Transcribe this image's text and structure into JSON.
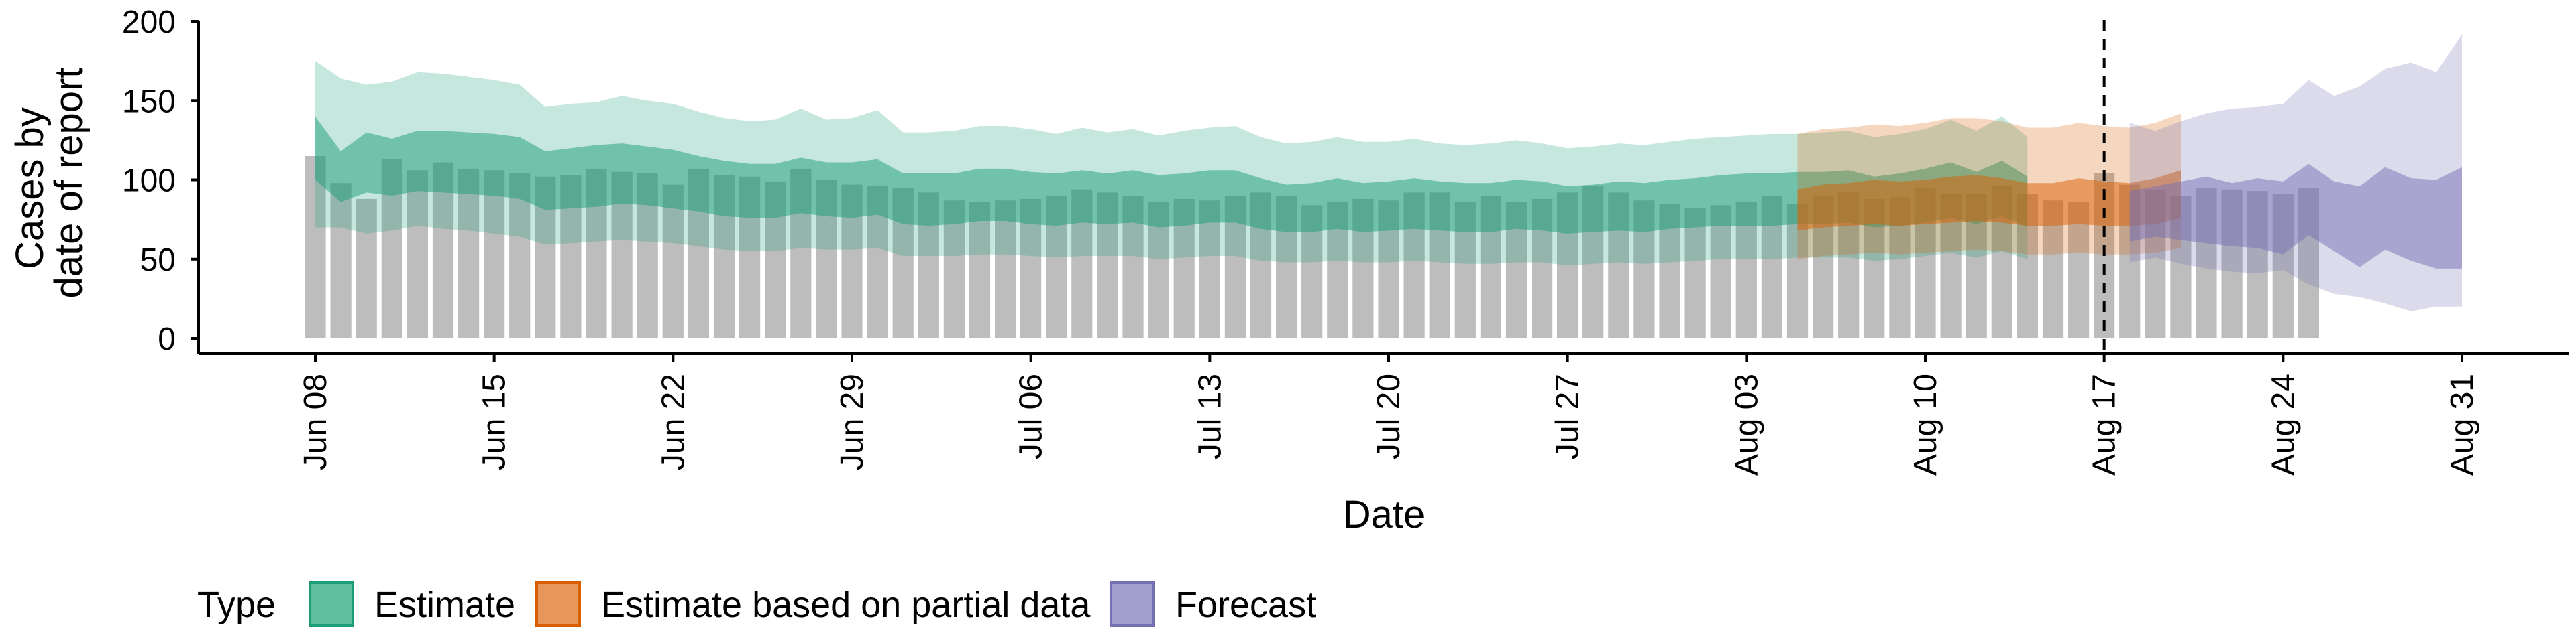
{
  "chart_data": {
    "type": "bar",
    "xlabel": "Date",
    "ylabel_lines": [
      "Cases by",
      "date of report"
    ],
    "ylim": [
      0,
      200
    ],
    "yticks": [
      0,
      50,
      100,
      150,
      200
    ],
    "x_start": "2020-06-08",
    "x_end": "2020-08-31",
    "xticks": [
      {
        "date": "2020-06-08",
        "label": "Jun 08"
      },
      {
        "date": "2020-06-15",
        "label": "Jun 15"
      },
      {
        "date": "2020-06-22",
        "label": "Jun 22"
      },
      {
        "date": "2020-06-29",
        "label": "Jun 29"
      },
      {
        "date": "2020-07-06",
        "label": "Jul 06"
      },
      {
        "date": "2020-07-13",
        "label": "Jul 13"
      },
      {
        "date": "2020-07-20",
        "label": "Jul 20"
      },
      {
        "date": "2020-07-27",
        "label": "Jul 27"
      },
      {
        "date": "2020-08-03",
        "label": "Aug 03"
      },
      {
        "date": "2020-08-10",
        "label": "Aug 10"
      },
      {
        "date": "2020-08-17",
        "label": "Aug 17"
      },
      {
        "date": "2020-08-24",
        "label": "Aug 24"
      },
      {
        "date": "2020-08-31",
        "label": "Aug 31"
      }
    ],
    "forecast_divider_date": "2020-08-17",
    "observed_cases": {
      "start_date": "2020-06-08",
      "values": [
        115,
        98,
        88,
        113,
        106,
        111,
        107,
        106,
        104,
        102,
        103,
        107,
        105,
        104,
        97,
        107,
        103,
        102,
        99,
        107,
        100,
        97,
        96,
        95,
        92,
        87,
        86,
        87,
        88,
        90,
        94,
        92,
        90,
        86,
        88,
        87,
        90,
        92,
        90,
        84,
        86,
        88,
        87,
        92,
        92,
        86,
        90,
        86,
        88,
        92,
        96,
        92,
        87,
        85,
        82,
        84,
        86,
        90,
        85,
        90,
        92,
        88,
        89,
        95,
        91,
        91,
        96,
        91,
        87,
        86,
        104,
        97,
        94,
        90,
        95,
        94,
        93,
        91,
        95
      ]
    },
    "estimate_bands": [
      {
        "type": "Estimate",
        "start_date": "2020-06-08",
        "outer_upper": [
          175,
          164,
          160,
          162,
          168,
          167,
          165,
          163,
          160,
          146,
          148,
          149,
          153,
          150,
          148,
          143,
          139,
          137,
          138,
          145,
          138,
          139,
          144,
          130,
          130,
          131,
          134,
          134,
          132,
          129,
          133,
          130,
          132,
          128,
          131,
          133,
          134,
          127,
          123,
          124,
          127,
          124,
          124,
          126,
          123,
          122,
          123,
          125,
          123,
          120,
          121,
          123,
          122,
          124,
          126,
          127,
          128,
          129,
          129,
          130,
          131,
          127,
          129,
          132,
          138,
          131,
          140,
          127
        ],
        "inner_upper": [
          140,
          118,
          130,
          126,
          131,
          131,
          130,
          129,
          127,
          118,
          120,
          122,
          123,
          121,
          119,
          115,
          112,
          110,
          110,
          114,
          111,
          111,
          113,
          104,
          104,
          104,
          107,
          107,
          105,
          104,
          106,
          104,
          106,
          103,
          104,
          106,
          106,
          101,
          97,
          98,
          101,
          98,
          99,
          101,
          99,
          98,
          98,
          100,
          99,
          96,
          97,
          99,
          98,
          100,
          101,
          103,
          104,
          104,
          105,
          105,
          106,
          102,
          104,
          107,
          111,
          105,
          112,
          102
        ],
        "inner_lower": [
          100,
          86,
          92,
          90,
          93,
          92,
          91,
          90,
          88,
          81,
          82,
          83,
          85,
          84,
          82,
          80,
          77,
          76,
          76,
          79,
          77,
          76,
          78,
          72,
          71,
          72,
          74,
          74,
          72,
          71,
          73,
          72,
          73,
          70,
          71,
          73,
          73,
          69,
          67,
          67,
          69,
          67,
          68,
          69,
          68,
          67,
          67,
          69,
          68,
          66,
          67,
          68,
          67,
          69,
          70,
          71,
          71,
          71,
          72,
          72,
          73,
          70,
          71,
          73,
          76,
          72,
          77,
          70
        ],
        "outer_lower": [
          70,
          70,
          66,
          68,
          71,
          69,
          68,
          66,
          64,
          59,
          60,
          61,
          62,
          61,
          60,
          58,
          56,
          55,
          55,
          57,
          56,
          56,
          57,
          52,
          52,
          52,
          53,
          53,
          52,
          51,
          52,
          52,
          52,
          50,
          51,
          52,
          52,
          49,
          48,
          48,
          49,
          48,
          48,
          49,
          48,
          47,
          47,
          48,
          48,
          46,
          47,
          48,
          47,
          48,
          49,
          50,
          50,
          50,
          51,
          51,
          51,
          49,
          50,
          52,
          54,
          51,
          55,
          50
        ]
      },
      {
        "type": "Estimate based on partial data",
        "start_date": "2020-08-05",
        "outer_upper": [
          129,
          132,
          133,
          135,
          134,
          136,
          139,
          139,
          137,
          133,
          133,
          136,
          134,
          133,
          136,
          142
        ],
        "inner_upper": [
          94,
          97,
          98,
          100,
          99,
          100,
          102,
          103,
          101,
          98,
          98,
          101,
          99,
          98,
          101,
          106
        ],
        "inner_lower": [
          68,
          70,
          71,
          72,
          71,
          72,
          73,
          74,
          73,
          71,
          71,
          72,
          71,
          71,
          72,
          76
        ],
        "outer_lower": [
          50,
          52,
          53,
          54,
          53,
          54,
          55,
          56,
          55,
          53,
          53,
          54,
          53,
          53,
          54,
          57
        ]
      },
      {
        "type": "Forecast",
        "start_date": "2020-08-18",
        "outer_upper": [
          136,
          131,
          137,
          142,
          145,
          146,
          148,
          163,
          153,
          159,
          170,
          174,
          168,
          192
        ],
        "inner_upper": [
          93,
          96,
          99,
          102,
          98,
          101,
          99,
          110,
          99,
          96,
          108,
          101,
          100,
          108
        ],
        "inner_lower": [
          61,
          64,
          62,
          60,
          58,
          57,
          53,
          65,
          55,
          45,
          56,
          49,
          44,
          44
        ],
        "outer_lower": [
          48,
          51,
          47,
          44,
          42,
          41,
          43,
          34,
          28,
          26,
          22,
          17,
          20,
          20
        ]
      }
    ],
    "legend": {
      "title": "Type",
      "placement": "bottom-left",
      "entries": [
        {
          "label": "Estimate",
          "fill": "#5fbf9e",
          "stroke": "#1b9e77"
        },
        {
          "label": "Estimate based on partial data",
          "fill": "#e8975a",
          "stroke": "#d95f02"
        },
        {
          "label": "Forecast",
          "fill": "#a29fcc",
          "stroke": "#7570b3"
        }
      ]
    },
    "colors": {
      "bars": "#bdbdbd",
      "estimate_band": "#1b9e77",
      "partial_band": "#d95f02",
      "forecast_band": "#7570b3",
      "divider": "#000000"
    }
  }
}
